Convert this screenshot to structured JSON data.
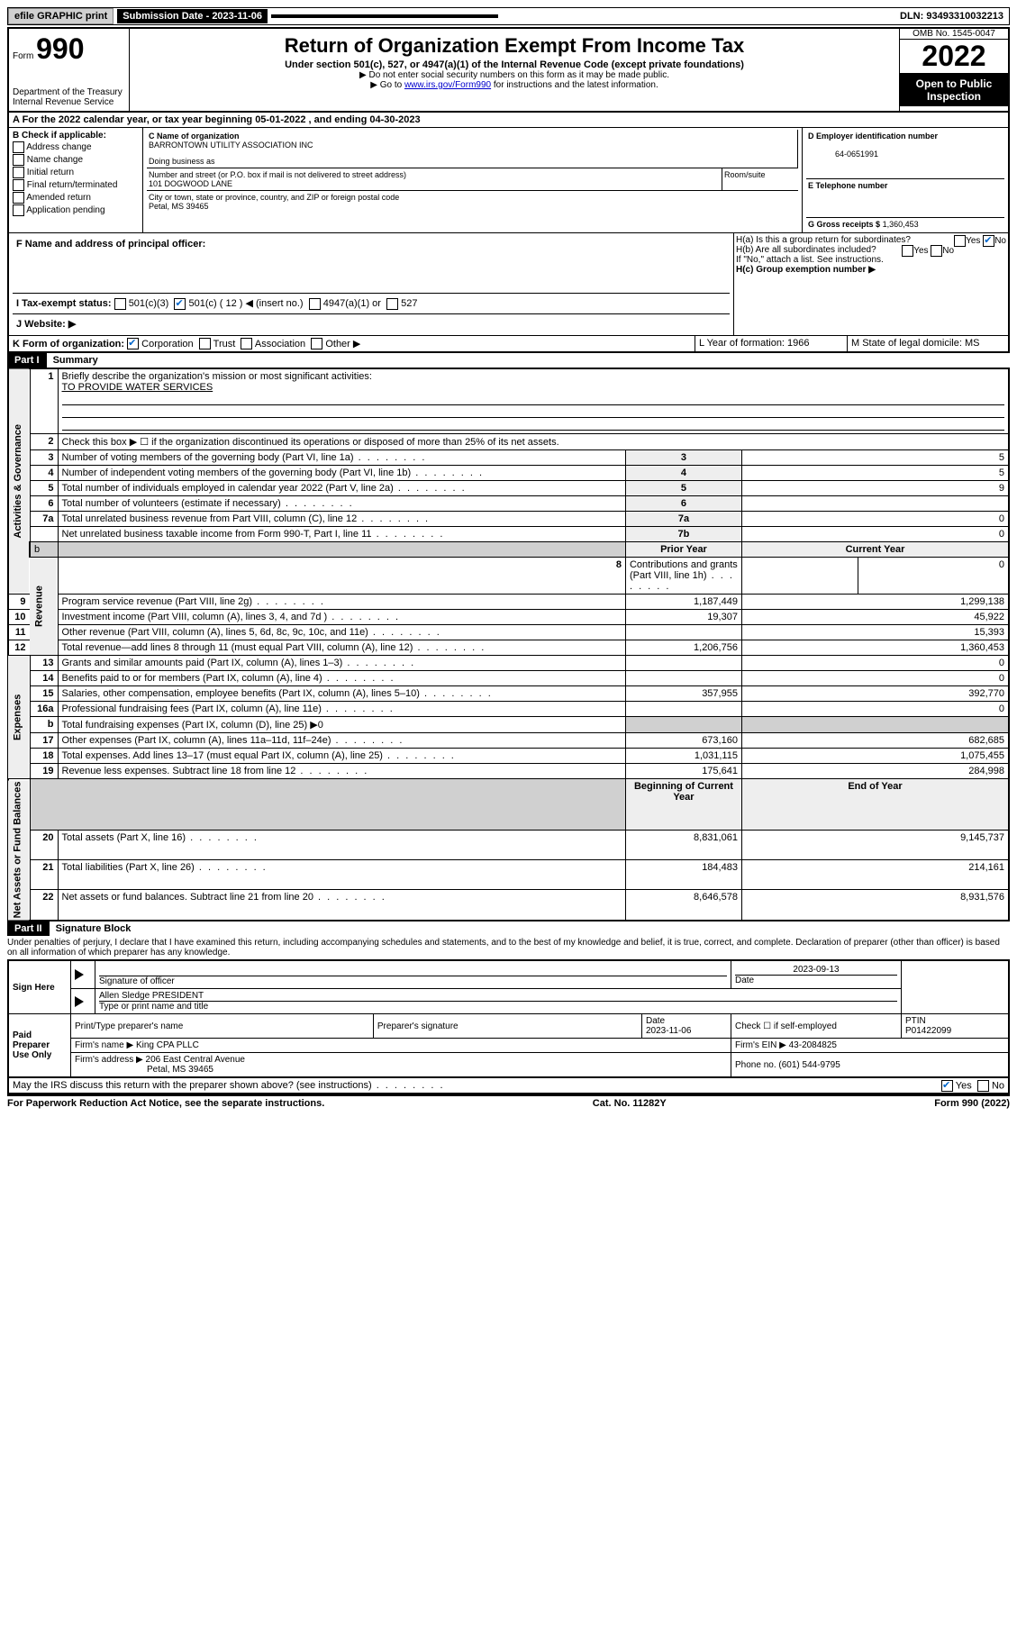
{
  "topbar": {
    "efile": "efile GRAPHIC print",
    "submission_label": "Submission Date - 2023-11-06",
    "dln": "DLN: 93493310032213"
  },
  "header": {
    "form_prefix": "Form",
    "form_number": "990",
    "dept": "Department of the Treasury",
    "irs": "Internal Revenue Service",
    "title": "Return of Organization Exempt From Income Tax",
    "subtitle": "Under section 501(c), 527, or 4947(a)(1) of the Internal Revenue Code (except private foundations)",
    "note1": "▶ Do not enter social security numbers on this form as it may be made public.",
    "note2_pre": "▶ Go to ",
    "note2_link": "www.irs.gov/Form990",
    "note2_post": " for instructions and the latest information.",
    "omb": "OMB No. 1545-0047",
    "year": "2022",
    "inspection": "Open to Public Inspection"
  },
  "sectionA": {
    "line": "A For the 2022 calendar year, or tax year beginning 05-01-2022   , and ending 04-30-2023"
  },
  "checkB": {
    "label": "B Check if applicable:",
    "opts": [
      "Address change",
      "Name change",
      "Initial return",
      "Final return/terminated",
      "Amended return",
      "Application pending"
    ]
  },
  "blockC": {
    "c_label": "C Name of organization",
    "org_name": "BARRONTOWN UTILITY ASSOCIATION INC",
    "dba_label": "Doing business as",
    "addr_label": "Number and street (or P.O. box if mail is not delivered to street address)",
    "room_label": "Room/suite",
    "address": "101 DOGWOOD LANE",
    "city_label": "City or town, state or province, country, and ZIP or foreign postal code",
    "city": "Petal, MS  39465"
  },
  "blockD": {
    "label": "D Employer identification number",
    "ein": "64-0651991"
  },
  "blockE": {
    "label": "E Telephone number"
  },
  "blockG": {
    "label": "G Gross receipts $",
    "value": "1,360,453"
  },
  "blockF": {
    "label": "F  Name and address of principal officer:"
  },
  "blockH": {
    "ha": "H(a)  Is this a group return for subordinates?",
    "hb": "H(b)  Are all subordinates included?",
    "hb_note": "If \"No,\" attach a list. See instructions.",
    "hc": "H(c)  Group exemption number ▶",
    "yes": "Yes",
    "no": "No"
  },
  "blockI": {
    "label": "I   Tax-exempt status:",
    "o1": "501(c)(3)",
    "o2": "501(c) ( 12 ) ◀ (insert no.)",
    "o3": "4947(a)(1) or",
    "o4": "527"
  },
  "blockJ": {
    "label": "J   Website: ▶"
  },
  "blockK": {
    "label": "K Form of organization:",
    "o1": "Corporation",
    "o2": "Trust",
    "o3": "Association",
    "o4": "Other ▶"
  },
  "blockL": {
    "label": "L Year of formation: 1966"
  },
  "blockM": {
    "label": "M State of legal domicile: MS"
  },
  "part1": {
    "bar": "Part I",
    "title": "Summary"
  },
  "summary": {
    "line1_label": "Briefly describe the organization's mission or most significant activities:",
    "line1_text": "TO PROVIDE WATER SERVICES",
    "line2": "Check this box ▶ ☐  if the organization discontinued its operations or disposed of more than 25% of its net assets.",
    "rows_top": [
      {
        "n": "3",
        "label": "Number of voting members of the governing body (Part VI, line 1a)",
        "box": "3",
        "val": "5"
      },
      {
        "n": "4",
        "label": "Number of independent voting members of the governing body (Part VI, line 1b)",
        "box": "4",
        "val": "5"
      },
      {
        "n": "5",
        "label": "Total number of individuals employed in calendar year 2022 (Part V, line 2a)",
        "box": "5",
        "val": "9"
      },
      {
        "n": "6",
        "label": "Total number of volunteers (estimate if necessary)",
        "box": "6",
        "val": ""
      },
      {
        "n": "7a",
        "label": "Total unrelated business revenue from Part VIII, column (C), line 12",
        "box": "7a",
        "val": "0"
      },
      {
        "n": "",
        "label": "Net unrelated business taxable income from Form 990-T, Part I, line 11",
        "box": "7b",
        "val": "0"
      }
    ],
    "hdr_b": "b",
    "hdr_prior": "Prior Year",
    "hdr_current": "Current Year",
    "revenue": [
      {
        "n": "8",
        "label": "Contributions and grants (Part VIII, line 1h)",
        "prior": "",
        "cur": "0"
      },
      {
        "n": "9",
        "label": "Program service revenue (Part VIII, line 2g)",
        "prior": "1,187,449",
        "cur": "1,299,138"
      },
      {
        "n": "10",
        "label": "Investment income (Part VIII, column (A), lines 3, 4, and 7d )",
        "prior": "19,307",
        "cur": "45,922"
      },
      {
        "n": "11",
        "label": "Other revenue (Part VIII, column (A), lines 5, 6d, 8c, 9c, 10c, and 11e)",
        "prior": "",
        "cur": "15,393"
      },
      {
        "n": "12",
        "label": "Total revenue—add lines 8 through 11 (must equal Part VIII, column (A), line 12)",
        "prior": "1,206,756",
        "cur": "1,360,453"
      }
    ],
    "expenses": [
      {
        "n": "13",
        "label": "Grants and similar amounts paid (Part IX, column (A), lines 1–3)",
        "prior": "",
        "cur": "0"
      },
      {
        "n": "14",
        "label": "Benefits paid to or for members (Part IX, column (A), line 4)",
        "prior": "",
        "cur": "0"
      },
      {
        "n": "15",
        "label": "Salaries, other compensation, employee benefits (Part IX, column (A), lines 5–10)",
        "prior": "357,955",
        "cur": "392,770"
      },
      {
        "n": "16a",
        "label": "Professional fundraising fees (Part IX, column (A), line 11e)",
        "prior": "",
        "cur": "0"
      },
      {
        "n": "b",
        "label": "Total fundraising expenses (Part IX, column (D), line 25) ▶0",
        "prior": "GRAY",
        "cur": "GRAY"
      },
      {
        "n": "17",
        "label": "Other expenses (Part IX, column (A), lines 11a–11d, 11f–24e)",
        "prior": "673,160",
        "cur": "682,685"
      },
      {
        "n": "18",
        "label": "Total expenses. Add lines 13–17 (must equal Part IX, column (A), line 25)",
        "prior": "1,031,115",
        "cur": "1,075,455"
      },
      {
        "n": "19",
        "label": "Revenue less expenses. Subtract line 18 from line 12",
        "prior": "175,641",
        "cur": "284,998"
      }
    ],
    "hdr_begin": "Beginning of Current Year",
    "hdr_end": "End of Year",
    "netassets": [
      {
        "n": "20",
        "label": "Total assets (Part X, line 16)",
        "prior": "8,831,061",
        "cur": "9,145,737"
      },
      {
        "n": "21",
        "label": "Total liabilities (Part X, line 26)",
        "prior": "184,483",
        "cur": "214,161"
      },
      {
        "n": "22",
        "label": "Net assets or fund balances. Subtract line 21 from line 20",
        "prior": "8,646,578",
        "cur": "8,931,576"
      }
    ],
    "sidetabs": {
      "gov": "Activities & Governance",
      "rev": "Revenue",
      "exp": "Expenses",
      "net": "Net Assets or Fund Balances"
    }
  },
  "part2": {
    "bar": "Part II",
    "title": "Signature Block"
  },
  "sig": {
    "declaration": "Under penalties of perjury, I declare that I have examined this return, including accompanying schedules and statements, and to the best of my knowledge and belief, it is true, correct, and complete. Declaration of preparer (other than officer) is based on all information of which preparer has any knowledge.",
    "sign_here": "Sign Here",
    "sig_officer": "Signature of officer",
    "date": "Date",
    "sig_date": "2023-09-13",
    "officer_name": "Allen Sledge  PRESIDENT",
    "name_title_label": "Type or print name and title",
    "paid": "Paid Preparer Use Only",
    "pt_name_label": "Print/Type preparer's name",
    "pt_sig_label": "Preparer's signature",
    "pt_date_label": "Date",
    "pt_date": "2023-11-06",
    "check_if": "Check ☐ if self-employed",
    "ptin_label": "PTIN",
    "ptin": "P01422099",
    "firm_name_label": "Firm's name   ▶",
    "firm_name": "King CPA PLLC",
    "firm_ein_label": "Firm's EIN ▶",
    "firm_ein": "43-2084825",
    "firm_addr_label": "Firm's address ▶",
    "firm_addr": "206 East Central Avenue",
    "firm_city": "Petal, MS  39465",
    "phone_label": "Phone no.",
    "phone": "(601) 544-9795",
    "discuss": "May the IRS discuss this return with the preparer shown above? (see instructions)",
    "yes": "Yes",
    "no": "No"
  },
  "footer": {
    "left": "For Paperwork Reduction Act Notice, see the separate instructions.",
    "mid": "Cat. No. 11282Y",
    "right": "Form 990 (2022)"
  }
}
